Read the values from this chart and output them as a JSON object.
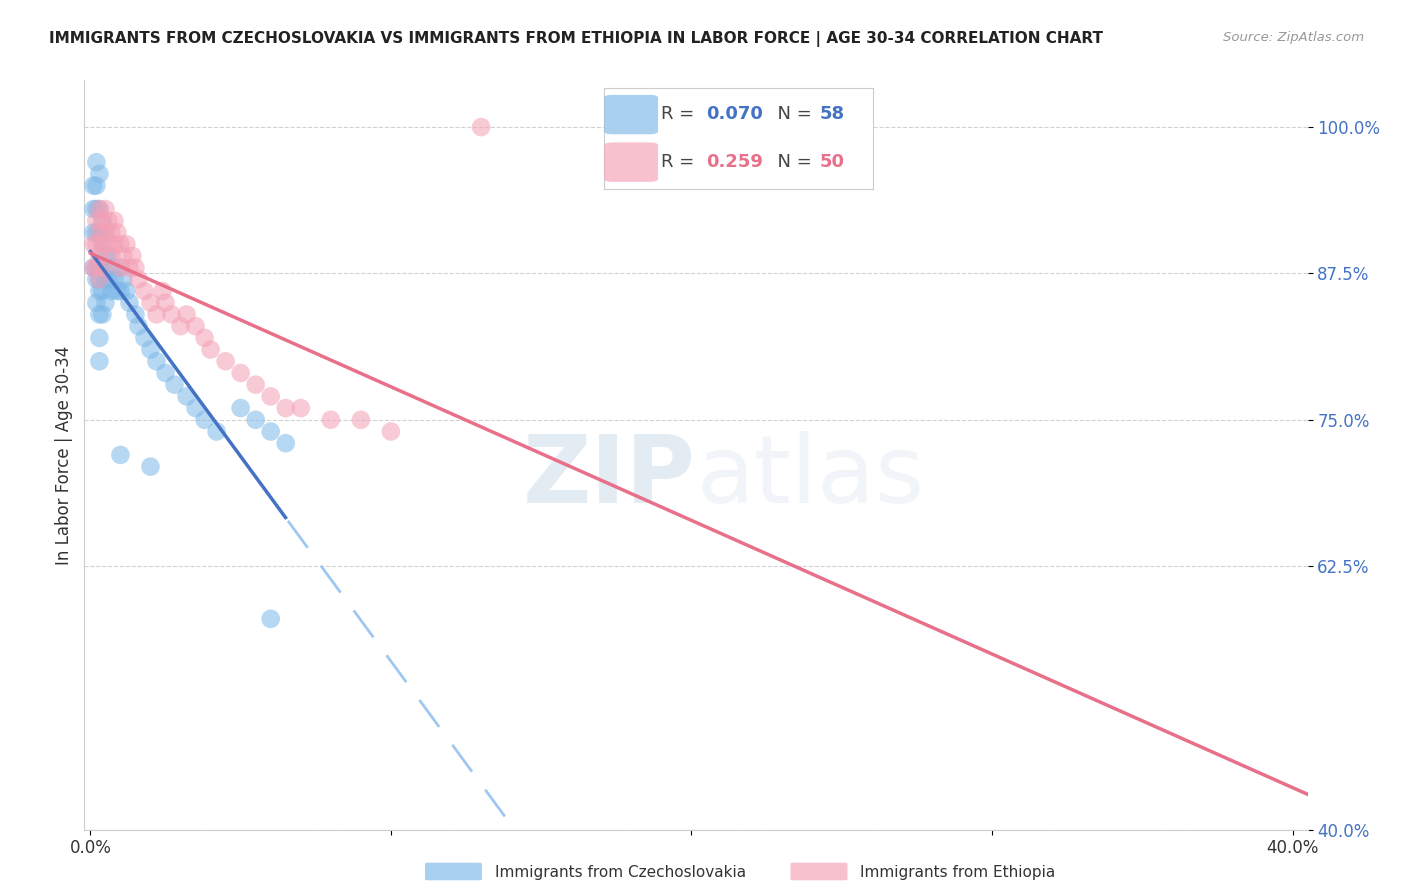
{
  "title": "IMMIGRANTS FROM CZECHOSLOVAKIA VS IMMIGRANTS FROM ETHIOPIA IN LABOR FORCE | AGE 30-34 CORRELATION CHART",
  "source": "Source: ZipAtlas.com",
  "ylabel": "In Labor Force | Age 30-34",
  "xlim": [
    -0.002,
    0.405
  ],
  "ylim": [
    0.4,
    1.04
  ],
  "yticks": [
    0.4,
    0.625,
    0.75,
    0.875,
    1.0
  ],
  "ytick_labels": [
    "40.0%",
    "62.5%",
    "75.0%",
    "87.5%",
    "100.0%"
  ],
  "xticks": [
    0.0,
    0.1,
    0.2,
    0.3,
    0.4
  ],
  "xtick_labels": [
    "0.0%",
    "",
    "",
    "",
    "40.0%"
  ],
  "blue_color": "#7db8e8",
  "pink_color": "#f4a0b5",
  "blue_line_color": "#4472c4",
  "pink_line_color": "#e8708a",
  "blue_dash_color": "#9ec8f0",
  "R_blue": 0.07,
  "N_blue": 58,
  "R_pink": 0.259,
  "N_pink": 50,
  "watermark_zip": "ZIP",
  "watermark_atlas": "atlas",
  "blue_scatter_x": [
    0.001,
    0.001,
    0.001,
    0.001,
    0.002,
    0.002,
    0.002,
    0.002,
    0.002,
    0.002,
    0.002,
    0.003,
    0.003,
    0.003,
    0.003,
    0.003,
    0.003,
    0.003,
    0.003,
    0.003,
    0.004,
    0.004,
    0.004,
    0.004,
    0.004,
    0.005,
    0.005,
    0.005,
    0.005,
    0.006,
    0.006,
    0.007,
    0.007,
    0.008,
    0.009,
    0.01,
    0.01,
    0.011,
    0.012,
    0.013,
    0.015,
    0.016,
    0.018,
    0.02,
    0.022,
    0.025,
    0.028,
    0.032,
    0.035,
    0.038,
    0.042,
    0.05,
    0.055,
    0.06,
    0.065,
    0.01,
    0.02,
    0.06
  ],
  "blue_scatter_y": [
    0.95,
    0.93,
    0.91,
    0.88,
    0.97,
    0.95,
    0.93,
    0.91,
    0.88,
    0.87,
    0.85,
    0.96,
    0.93,
    0.91,
    0.88,
    0.87,
    0.86,
    0.84,
    0.82,
    0.8,
    0.92,
    0.9,
    0.88,
    0.86,
    0.84,
    0.91,
    0.89,
    0.87,
    0.85,
    0.89,
    0.87,
    0.88,
    0.86,
    0.87,
    0.86,
    0.88,
    0.86,
    0.87,
    0.86,
    0.85,
    0.84,
    0.83,
    0.82,
    0.81,
    0.8,
    0.79,
    0.78,
    0.77,
    0.76,
    0.75,
    0.74,
    0.76,
    0.75,
    0.74,
    0.73,
    0.72,
    0.71,
    0.58
  ],
  "pink_scatter_x": [
    0.001,
    0.001,
    0.002,
    0.002,
    0.002,
    0.003,
    0.003,
    0.003,
    0.004,
    0.004,
    0.004,
    0.005,
    0.005,
    0.006,
    0.006,
    0.007,
    0.007,
    0.008,
    0.008,
    0.009,
    0.01,
    0.01,
    0.011,
    0.012,
    0.013,
    0.014,
    0.015,
    0.016,
    0.018,
    0.02,
    0.022,
    0.024,
    0.025,
    0.027,
    0.03,
    0.032,
    0.035,
    0.038,
    0.04,
    0.045,
    0.05,
    0.055,
    0.06,
    0.065,
    0.07,
    0.08,
    0.09,
    0.1,
    0.13,
    0.003
  ],
  "pink_scatter_y": [
    0.9,
    0.88,
    0.92,
    0.9,
    0.88,
    0.93,
    0.91,
    0.89,
    0.92,
    0.9,
    0.88,
    0.93,
    0.91,
    0.92,
    0.9,
    0.91,
    0.89,
    0.92,
    0.9,
    0.91,
    0.9,
    0.88,
    0.89,
    0.9,
    0.88,
    0.89,
    0.88,
    0.87,
    0.86,
    0.85,
    0.84,
    0.86,
    0.85,
    0.84,
    0.83,
    0.84,
    0.83,
    0.82,
    0.81,
    0.8,
    0.79,
    0.78,
    0.77,
    0.76,
    0.76,
    0.75,
    0.75,
    0.74,
    1.0,
    0.87
  ]
}
